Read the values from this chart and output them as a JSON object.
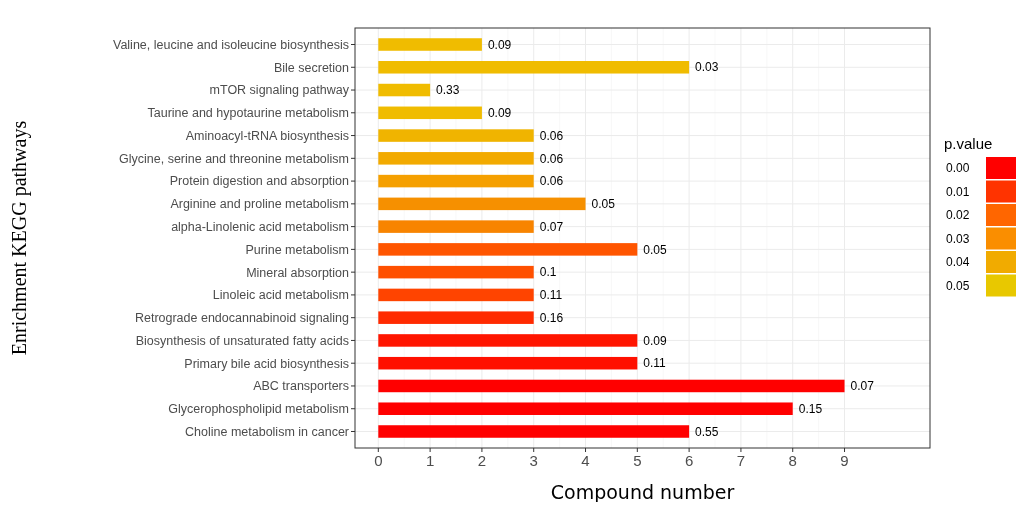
{
  "chart_data": {
    "type": "bar",
    "orientation": "horizontal",
    "xlabel": "Compound number",
    "ylabel": "Enrichment KEGG pathways",
    "categories": [
      "Valine, leucine and isoleucine biosynthesis",
      "Bile secretion",
      "mTOR signaling pathway",
      "Taurine and hypotaurine metabolism",
      "Aminoacyl-tRNA biosynthesis",
      "Glycine, serine and threonine metabolism",
      "Protein digestion and absorption",
      "Arginine and proline metabolism",
      "alpha-Linolenic acid metabolism",
      "Purine metabolism",
      "Mineral absorption",
      "Linoleic acid metabolism",
      "Retrograde endocannabinoid signaling",
      "Biosynthesis of unsaturated fatty acids",
      "Primary bile acid biosynthesis",
      "ABC transporters",
      "Glycerophospholipid metabolism",
      "Choline metabolism in cancer"
    ],
    "values": [
      2,
      6,
      1,
      2,
      3,
      3,
      3,
      4,
      3,
      5,
      3,
      3,
      3,
      5,
      5,
      9,
      8,
      6
    ],
    "colors": [
      "#f0bc00",
      "#f0bc00",
      "#f0bc00",
      "#f0bc00",
      "#f0b400",
      "#f2aa00",
      "#f5a000",
      "#f69000",
      "#f88400",
      "#ff5500",
      "#ff5000",
      "#ff4400",
      "#ff2a00",
      "#ff1500",
      "#ff1000",
      "#ff0000",
      "#ff0000",
      "#ff0000"
    ],
    "annotations": [
      {
        "text": "0.09",
        "x": 2,
        "y": "Valine, leucine and isoleucine biosynthesis"
      },
      {
        "text": "0.03",
        "x": 6,
        "y": "Bile secretion"
      },
      {
        "text": "0.33",
        "x": 1,
        "y": "mTOR signaling pathway"
      },
      {
        "text": "0.09",
        "x": 2,
        "y": "Taurine and hypotaurine metabolism"
      },
      {
        "text": "0.06",
        "x": 3,
        "y": "Aminoacyl-tRNA biosynthesis"
      },
      {
        "text": "0.06",
        "x": 3,
        "y": "Glycine, serine and threonine metabolism"
      },
      {
        "text": "0.06",
        "x": 3,
        "y": "Protein digestion and absorption"
      },
      {
        "text": "0.05",
        "x": 4,
        "y": "Arginine and proline metabolism"
      },
      {
        "text": "0.07",
        "x": 3,
        "y": "alpha-Linolenic acid metabolism"
      },
      {
        "text": "0.05",
        "x": 5,
        "y": "Purine metabolism"
      },
      {
        "text": "0.1",
        "x": 3,
        "y": "Mineral absorption"
      },
      {
        "text": "0.11",
        "x": 3,
        "y": "Linoleic acid metabolism"
      },
      {
        "text": "0.16",
        "x": 3,
        "y": "Retrograde endocannabinoid signaling"
      },
      {
        "text": "0.09",
        "x": 5,
        "y": "Biosynthesis of unsaturated fatty acids"
      },
      {
        "text": "0.11",
        "x": 5,
        "y": "Primary bile acid biosynthesis"
      },
      {
        "text": "0.07",
        "x": 9,
        "y": "ABC transporters"
      },
      {
        "text": "0.15",
        "x": 8,
        "y": "Glycerophospholipid metabolism"
      },
      {
        "text": "0.55",
        "x": 6,
        "y": "Choline metabolism in cancer"
      }
    ],
    "xlim": [
      -0.45,
      10.65
    ],
    "xticks": [
      0,
      1,
      2,
      3,
      4,
      5,
      6,
      7,
      8,
      9
    ],
    "grid": true,
    "clabel": "p.value",
    "clim": [
      0,
      0.05
    ],
    "cticks": [
      {
        "value": 0,
        "label": "0.00"
      },
      {
        "value": 0.01,
        "label": "0.01"
      },
      {
        "value": 0.02,
        "label": "0.02"
      },
      {
        "value": 0.03,
        "label": "0.03"
      },
      {
        "value": 0.04,
        "label": "0.04"
      },
      {
        "value": 0.05,
        "label": "0.05"
      }
    ]
  }
}
